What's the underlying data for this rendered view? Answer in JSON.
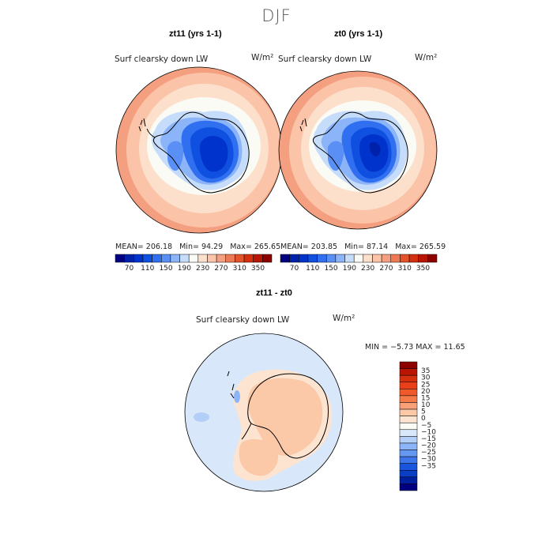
{
  "figure": {
    "title": "DJF"
  },
  "panels": [
    {
      "title": "zt11 (yrs 1-1)",
      "field": "Surf clearsky down LW",
      "units": "W/m²",
      "stats": {
        "mean": "206.18",
        "min": "94.29",
        "max": "265.65"
      }
    },
    {
      "title": "zt0 (yrs 1-1)",
      "field": "Surf clearsky down LW",
      "units": "W/m²",
      "stats": {
        "mean": "203.85",
        "min": "87.14",
        "max": "265.59"
      }
    }
  ],
  "diff_panel": {
    "title": "zt11 - zt0",
    "field": "Surf clearsky down LW",
    "units": "W/m²",
    "stats": {
      "min": "−5.73",
      "max": "11.65"
    }
  },
  "labels": {
    "mean": "MEAN=",
    "min": "Min=",
    "max": "Max=",
    "min_caps": "MIN =",
    "max_caps": "MAX ="
  },
  "chart_data": [
    {
      "type": "heatmap",
      "projection": "south polar stereographic",
      "title": "zt11 (yrs 1-1)",
      "subtitle": "Surf clearsky down LW",
      "units": "W/m²",
      "colorbar": {
        "orientation": "horizontal",
        "tick_labels": [
          "70",
          "110",
          "150",
          "190",
          "230",
          "270",
          "310",
          "350"
        ],
        "colors": [
          "#000080",
          "#0022aa",
          "#0033cc",
          "#1050e0",
          "#3070f0",
          "#5a90f5",
          "#8cb4f8",
          "#c6dcfb",
          "#fbfbf5",
          "#fde0cc",
          "#fbc4a8",
          "#f4a080",
          "#ee7a55",
          "#e4542a",
          "#d43010",
          "#b81505",
          "#8c0000"
        ]
      }
    },
    {
      "type": "heatmap",
      "projection": "south polar stereographic",
      "title": "zt0 (yrs 1-1)",
      "subtitle": "Surf clearsky down LW",
      "units": "W/m²",
      "colorbar": {
        "orientation": "horizontal",
        "tick_labels": [
          "70",
          "110",
          "150",
          "190",
          "230",
          "270",
          "310",
          "350"
        ],
        "colors": [
          "#000080",
          "#0022aa",
          "#0033cc",
          "#1050e0",
          "#3070f0",
          "#5a90f5",
          "#8cb4f8",
          "#c6dcfb",
          "#fbfbf5",
          "#fde0cc",
          "#fbc4a8",
          "#f4a080",
          "#ee7a55",
          "#e4542a",
          "#d43010",
          "#b81505",
          "#8c0000"
        ]
      }
    },
    {
      "type": "heatmap",
      "projection": "south polar stereographic",
      "title": "zt11 - zt0",
      "subtitle": "Surf clearsky down LW",
      "units": "W/m²",
      "colorbar": {
        "orientation": "vertical",
        "tick_labels": [
          "35",
          "30",
          "25",
          "20",
          "15",
          "10",
          "5",
          "0",
          "−5",
          "−10",
          "−15",
          "−20",
          "−25",
          "−30",
          "−35"
        ],
        "colors": [
          "#8c0000",
          "#b81505",
          "#d43010",
          "#e8401a",
          "#f05a2a",
          "#f47a48",
          "#f8a078",
          "#fbc8a8",
          "#fde4d0",
          "#fbfbf5",
          "#d8e8fa",
          "#b4cff7",
          "#8cb4f8",
          "#6698f2",
          "#3f75ea",
          "#1a55dd",
          "#0a3ec4",
          "#0020a0",
          "#000080"
        ]
      }
    }
  ]
}
